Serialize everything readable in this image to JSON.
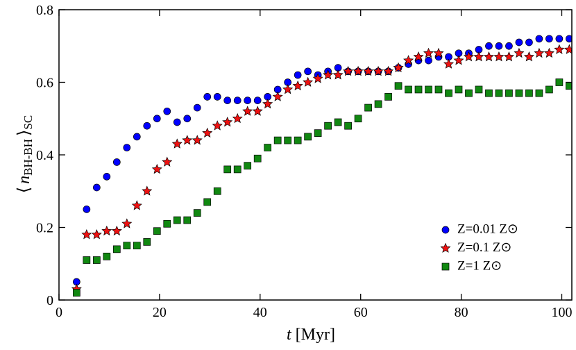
{
  "chart_data": {
    "type": "scatter",
    "x_label": [
      "t",
      "[Myr]"
    ],
    "y_label": [
      "⟨",
      "n",
      "BH-BH",
      "⟩",
      "SC"
    ],
    "xlim": [
      0,
      102
    ],
    "ylim": [
      0,
      0.8
    ],
    "xticks": [
      0,
      20,
      40,
      60,
      80,
      100
    ],
    "yticks": [
      0,
      0.2,
      0.4,
      0.6,
      0.8
    ],
    "legend": "lower right",
    "x": [
      3.5,
      5.5,
      7.5,
      9.5,
      11.5,
      13.5,
      15.5,
      17.5,
      19.5,
      21.5,
      23.5,
      25.5,
      27.5,
      29.5,
      31.5,
      33.5,
      35.5,
      37.5,
      39.5,
      41.5,
      43.5,
      45.5,
      47.5,
      49.5,
      51.5,
      53.5,
      55.5,
      57.5,
      59.5,
      61.5,
      63.5,
      65.5,
      67.5,
      69.5,
      71.5,
      73.5,
      75.5,
      77.5,
      79.5,
      81.5,
      83.5,
      85.5,
      87.5,
      89.5,
      91.5,
      93.5,
      95.5,
      97.5,
      99.5,
      101.5
    ],
    "series": [
      {
        "name": "Z=0.01 Z⊙",
        "color": "#0000ff",
        "marker": "circle",
        "values": [
          0.05,
          0.25,
          0.31,
          0.34,
          0.38,
          0.42,
          0.45,
          0.48,
          0.5,
          0.52,
          0.49,
          0.5,
          0.53,
          0.56,
          0.56,
          0.55,
          0.55,
          0.55,
          0.55,
          0.56,
          0.58,
          0.6,
          0.62,
          0.63,
          0.62,
          0.63,
          0.64,
          0.63,
          0.63,
          0.63,
          0.63,
          0.63,
          0.64,
          0.65,
          0.66,
          0.66,
          0.67,
          0.67,
          0.68,
          0.68,
          0.69,
          0.7,
          0.7,
          0.7,
          0.71,
          0.71,
          0.72,
          0.72,
          0.72,
          0.72
        ]
      },
      {
        "name": "Z=0.1 Z⊙",
        "color": "#ee1111",
        "marker": "star",
        "values": [
          0.03,
          0.18,
          0.18,
          0.19,
          0.19,
          0.21,
          0.26,
          0.3,
          0.36,
          0.38,
          0.43,
          0.44,
          0.44,
          0.46,
          0.48,
          0.49,
          0.5,
          0.52,
          0.52,
          0.54,
          0.56,
          0.58,
          0.59,
          0.6,
          0.61,
          0.62,
          0.62,
          0.63,
          0.63,
          0.63,
          0.63,
          0.63,
          0.64,
          0.66,
          0.67,
          0.68,
          0.68,
          0.65,
          0.66,
          0.67,
          0.67,
          0.67,
          0.67,
          0.67,
          0.68,
          0.67,
          0.68,
          0.68,
          0.69,
          0.69
        ]
      },
      {
        "name": "Z=1 Z⊙",
        "color": "#118811",
        "marker": "square",
        "values": [
          0.02,
          0.11,
          0.11,
          0.12,
          0.14,
          0.15,
          0.15,
          0.16,
          0.19,
          0.21,
          0.22,
          0.22,
          0.24,
          0.27,
          0.3,
          0.36,
          0.36,
          0.37,
          0.39,
          0.42,
          0.44,
          0.44,
          0.44,
          0.45,
          0.46,
          0.48,
          0.49,
          0.48,
          0.5,
          0.53,
          0.54,
          0.56,
          0.59,
          0.58,
          0.58,
          0.58,
          0.58,
          0.57,
          0.58,
          0.57,
          0.58,
          0.57,
          0.57,
          0.57,
          0.57,
          0.57,
          0.57,
          0.58,
          0.6,
          0.59
        ]
      }
    ]
  }
}
